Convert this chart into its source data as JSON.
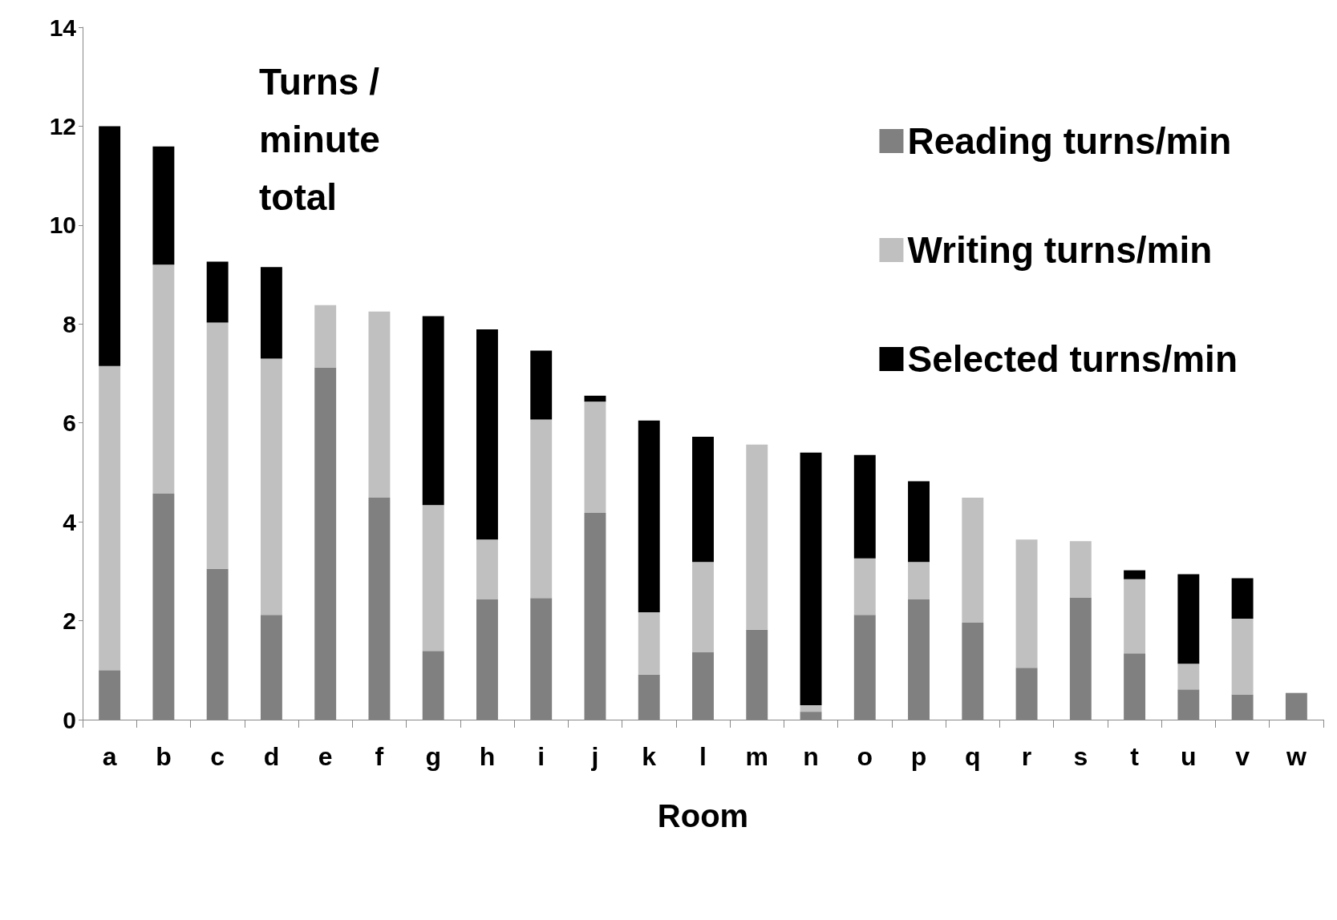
{
  "chart_data": {
    "type": "bar",
    "stacked": true,
    "xlabel": "Room",
    "annotations": [
      "Turns /\nminute\ntotal"
    ],
    "categories": [
      "a",
      "b",
      "c",
      "d",
      "e",
      "f",
      "g",
      "h",
      "i",
      "j",
      "k",
      "l",
      "m",
      "n",
      "o",
      "p",
      "q",
      "r",
      "s",
      "t",
      "u",
      "v",
      "w"
    ],
    "series": [
      {
        "name": "Reading turns/min",
        "color": "#808080",
        "values": [
          1.0,
          4.57,
          3.05,
          2.12,
          7.12,
          4.49,
          1.39,
          2.43,
          2.46,
          4.18,
          0.91,
          1.36,
          1.82,
          0.16,
          2.12,
          2.44,
          1.96,
          1.05,
          2.47,
          1.34,
          0.61,
          0.51,
          0.54
        ]
      },
      {
        "name": "Writing turns/min",
        "color": "#c0c0c0",
        "values": [
          6.15,
          4.63,
          4.98,
          5.18,
          1.26,
          3.76,
          2.95,
          1.21,
          3.61,
          2.25,
          1.26,
          1.83,
          3.74,
          0.13,
          1.14,
          0.75,
          2.53,
          2.59,
          1.14,
          1.5,
          0.52,
          1.53,
          0
        ]
      },
      {
        "name": "Selected turns/min",
        "color": "#000000",
        "values": [
          4.85,
          2.39,
          1.23,
          1.85,
          0,
          0,
          3.82,
          4.25,
          1.39,
          0.12,
          3.88,
          2.53,
          0,
          5.11,
          2.09,
          1.63,
          0,
          0,
          0,
          0.18,
          1.81,
          0.82,
          0
        ]
      }
    ],
    "ylim": [
      0,
      14
    ],
    "yticks": [
      0,
      2,
      4,
      6,
      8,
      10,
      12,
      14
    ],
    "grid": false,
    "legend": "top right"
  }
}
